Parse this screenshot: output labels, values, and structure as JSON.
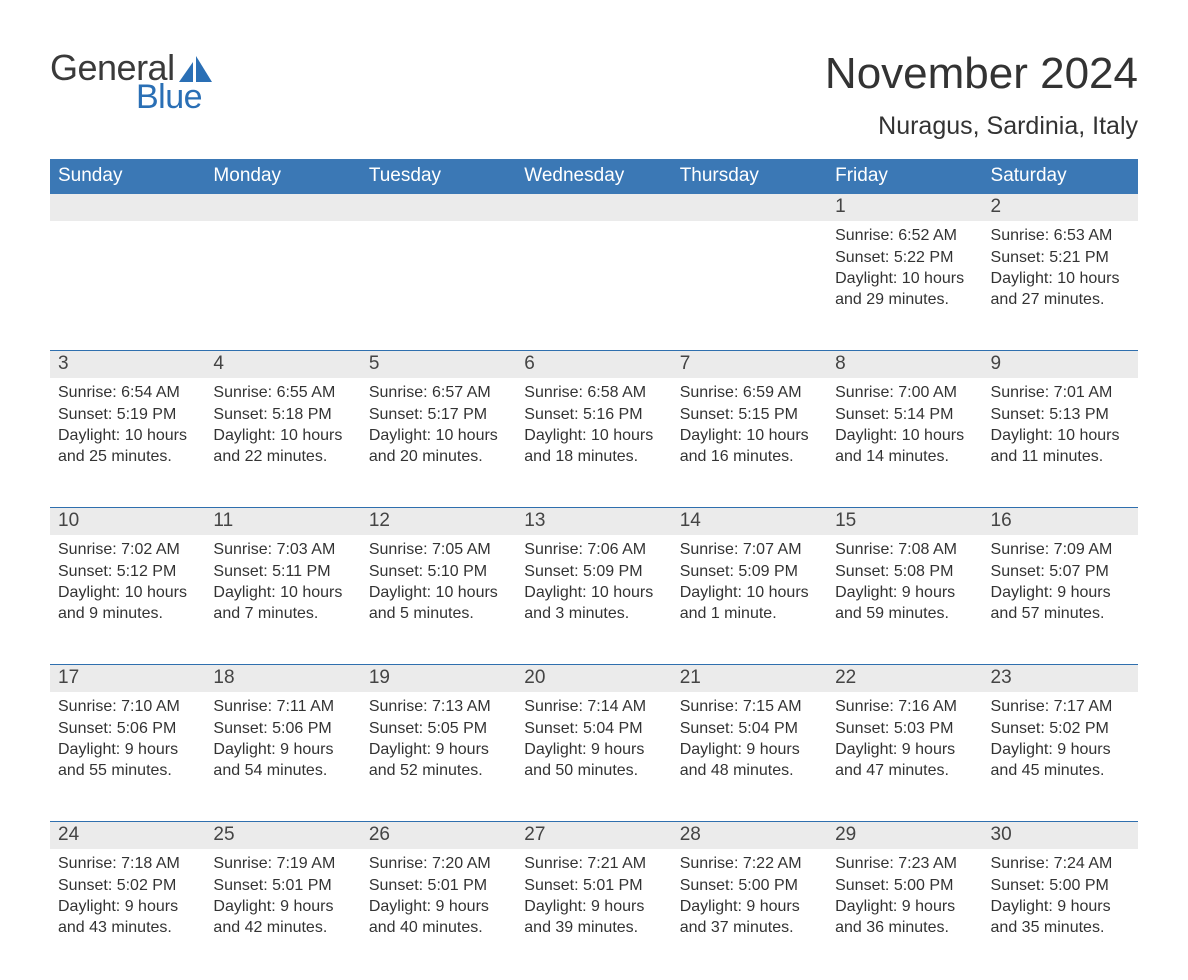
{
  "logo": {
    "general": "General",
    "blue": "Blue"
  },
  "title": "November 2024",
  "subtitle": "Nuragus, Sardinia, Italy",
  "colors": {
    "header_bg": "#3b78b5",
    "header_text": "#ffffff",
    "week_border": "#2f6fae",
    "daynum_bg": "#ebebeb",
    "text": "#333333",
    "logo_general": "#3a3a3a",
    "logo_blue": "#2a6fb5",
    "page_bg": "#ffffff"
  },
  "font_sizes_pt": {
    "title": 33,
    "subtitle": 19,
    "dow": 14,
    "daynum": 14,
    "info": 12,
    "logo": 27
  },
  "dow": [
    "Sunday",
    "Monday",
    "Tuesday",
    "Wednesday",
    "Thursday",
    "Friday",
    "Saturday"
  ],
  "weeks": [
    [
      {
        "day": "",
        "sunrise": "",
        "sunset": "",
        "daylight": ""
      },
      {
        "day": "",
        "sunrise": "",
        "sunset": "",
        "daylight": ""
      },
      {
        "day": "",
        "sunrise": "",
        "sunset": "",
        "daylight": ""
      },
      {
        "day": "",
        "sunrise": "",
        "sunset": "",
        "daylight": ""
      },
      {
        "day": "",
        "sunrise": "",
        "sunset": "",
        "daylight": ""
      },
      {
        "day": "1",
        "sunrise": "Sunrise: 6:52 AM",
        "sunset": "Sunset: 5:22 PM",
        "daylight": "Daylight: 10 hours and 29 minutes."
      },
      {
        "day": "2",
        "sunrise": "Sunrise: 6:53 AM",
        "sunset": "Sunset: 5:21 PM",
        "daylight": "Daylight: 10 hours and 27 minutes."
      }
    ],
    [
      {
        "day": "3",
        "sunrise": "Sunrise: 6:54 AM",
        "sunset": "Sunset: 5:19 PM",
        "daylight": "Daylight: 10 hours and 25 minutes."
      },
      {
        "day": "4",
        "sunrise": "Sunrise: 6:55 AM",
        "sunset": "Sunset: 5:18 PM",
        "daylight": "Daylight: 10 hours and 22 minutes."
      },
      {
        "day": "5",
        "sunrise": "Sunrise: 6:57 AM",
        "sunset": "Sunset: 5:17 PM",
        "daylight": "Daylight: 10 hours and 20 minutes."
      },
      {
        "day": "6",
        "sunrise": "Sunrise: 6:58 AM",
        "sunset": "Sunset: 5:16 PM",
        "daylight": "Daylight: 10 hours and 18 minutes."
      },
      {
        "day": "7",
        "sunrise": "Sunrise: 6:59 AM",
        "sunset": "Sunset: 5:15 PM",
        "daylight": "Daylight: 10 hours and 16 minutes."
      },
      {
        "day": "8",
        "sunrise": "Sunrise: 7:00 AM",
        "sunset": "Sunset: 5:14 PM",
        "daylight": "Daylight: 10 hours and 14 minutes."
      },
      {
        "day": "9",
        "sunrise": "Sunrise: 7:01 AM",
        "sunset": "Sunset: 5:13 PM",
        "daylight": "Daylight: 10 hours and 11 minutes."
      }
    ],
    [
      {
        "day": "10",
        "sunrise": "Sunrise: 7:02 AM",
        "sunset": "Sunset: 5:12 PM",
        "daylight": "Daylight: 10 hours and 9 minutes."
      },
      {
        "day": "11",
        "sunrise": "Sunrise: 7:03 AM",
        "sunset": "Sunset: 5:11 PM",
        "daylight": "Daylight: 10 hours and 7 minutes."
      },
      {
        "day": "12",
        "sunrise": "Sunrise: 7:05 AM",
        "sunset": "Sunset: 5:10 PM",
        "daylight": "Daylight: 10 hours and 5 minutes."
      },
      {
        "day": "13",
        "sunrise": "Sunrise: 7:06 AM",
        "sunset": "Sunset: 5:09 PM",
        "daylight": "Daylight: 10 hours and 3 minutes."
      },
      {
        "day": "14",
        "sunrise": "Sunrise: 7:07 AM",
        "sunset": "Sunset: 5:09 PM",
        "daylight": "Daylight: 10 hours and 1 minute."
      },
      {
        "day": "15",
        "sunrise": "Sunrise: 7:08 AM",
        "sunset": "Sunset: 5:08 PM",
        "daylight": "Daylight: 9 hours and 59 minutes."
      },
      {
        "day": "16",
        "sunrise": "Sunrise: 7:09 AM",
        "sunset": "Sunset: 5:07 PM",
        "daylight": "Daylight: 9 hours and 57 minutes."
      }
    ],
    [
      {
        "day": "17",
        "sunrise": "Sunrise: 7:10 AM",
        "sunset": "Sunset: 5:06 PM",
        "daylight": "Daylight: 9 hours and 55 minutes."
      },
      {
        "day": "18",
        "sunrise": "Sunrise: 7:11 AM",
        "sunset": "Sunset: 5:06 PM",
        "daylight": "Daylight: 9 hours and 54 minutes."
      },
      {
        "day": "19",
        "sunrise": "Sunrise: 7:13 AM",
        "sunset": "Sunset: 5:05 PM",
        "daylight": "Daylight: 9 hours and 52 minutes."
      },
      {
        "day": "20",
        "sunrise": "Sunrise: 7:14 AM",
        "sunset": "Sunset: 5:04 PM",
        "daylight": "Daylight: 9 hours and 50 minutes."
      },
      {
        "day": "21",
        "sunrise": "Sunrise: 7:15 AM",
        "sunset": "Sunset: 5:04 PM",
        "daylight": "Daylight: 9 hours and 48 minutes."
      },
      {
        "day": "22",
        "sunrise": "Sunrise: 7:16 AM",
        "sunset": "Sunset: 5:03 PM",
        "daylight": "Daylight: 9 hours and 47 minutes."
      },
      {
        "day": "23",
        "sunrise": "Sunrise: 7:17 AM",
        "sunset": "Sunset: 5:02 PM",
        "daylight": "Daylight: 9 hours and 45 minutes."
      }
    ],
    [
      {
        "day": "24",
        "sunrise": "Sunrise: 7:18 AM",
        "sunset": "Sunset: 5:02 PM",
        "daylight": "Daylight: 9 hours and 43 minutes."
      },
      {
        "day": "25",
        "sunrise": "Sunrise: 7:19 AM",
        "sunset": "Sunset: 5:01 PM",
        "daylight": "Daylight: 9 hours and 42 minutes."
      },
      {
        "day": "26",
        "sunrise": "Sunrise: 7:20 AM",
        "sunset": "Sunset: 5:01 PM",
        "daylight": "Daylight: 9 hours and 40 minutes."
      },
      {
        "day": "27",
        "sunrise": "Sunrise: 7:21 AM",
        "sunset": "Sunset: 5:01 PM",
        "daylight": "Daylight: 9 hours and 39 minutes."
      },
      {
        "day": "28",
        "sunrise": "Sunrise: 7:22 AM",
        "sunset": "Sunset: 5:00 PM",
        "daylight": "Daylight: 9 hours and 37 minutes."
      },
      {
        "day": "29",
        "sunrise": "Sunrise: 7:23 AM",
        "sunset": "Sunset: 5:00 PM",
        "daylight": "Daylight: 9 hours and 36 minutes."
      },
      {
        "day": "30",
        "sunrise": "Sunrise: 7:24 AM",
        "sunset": "Sunset: 5:00 PM",
        "daylight": "Daylight: 9 hours and 35 minutes."
      }
    ]
  ]
}
